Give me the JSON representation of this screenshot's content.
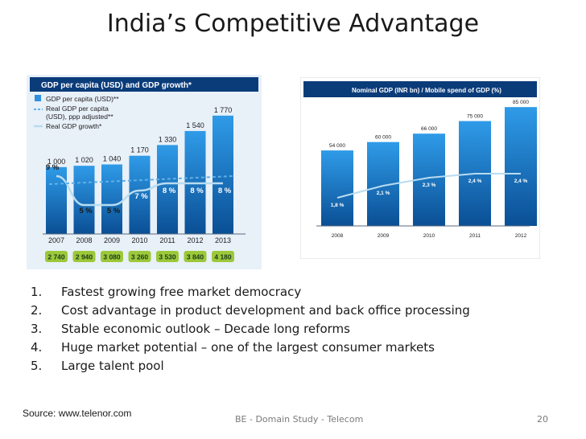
{
  "slide": {
    "title": "India’s Competitive Advantage",
    "bullets": [
      {
        "num": "1.",
        "text": "Fastest growing  free market democracy"
      },
      {
        "num": "2.",
        "text": "Cost advantage in product development and back office processing"
      },
      {
        "num": "3.",
        "text": "Stable economic outlook – Decade long reforms"
      },
      {
        "num": "4.",
        "text": "Huge market potential – one of the largest consumer markets"
      },
      {
        "num": "5.",
        "text": "Large talent pool"
      }
    ],
    "source": "Source: www.telenor.com",
    "footer_center": "BE - Domain Study - Telecom",
    "page_number": "20"
  },
  "colors": {
    "bar_top": "#2f9be8",
    "bar_bottom": "#0a4f95",
    "header_bg": "#0b3c7a",
    "panel_bg": "#e8f0f8",
    "green_box": "#9cc83a",
    "dashed_line": "#5fb0e8",
    "solid_line": "#b8dcf0"
  },
  "chart_data": [
    {
      "type": "bar",
      "title": "GDP per capita (USD) and GDP growth*",
      "categories": [
        "2007",
        "2008",
        "2009",
        "2010",
        "2011",
        "2012",
        "2013"
      ],
      "ylim": [
        0,
        1900
      ],
      "legend": {
        "placement": "top-left",
        "entries": [
          {
            "label": "GDP per capita (USD)**",
            "marker": "bar"
          },
          {
            "label": "Real GDP per capita (USD), ppp adjusted**",
            "marker": "dashed-line"
          },
          {
            "label": "Real GDP growth*",
            "marker": "line"
          }
        ]
      },
      "series": [
        {
          "name": "GDP per capita (USD)**",
          "kind": "bar",
          "values": [
            1000,
            1020,
            1040,
            1170,
            1330,
            1540,
            1770
          ],
          "labels": [
            "1 000",
            "1 020",
            "1 040",
            "1 170",
            "1 330",
            "1 540",
            "1 770"
          ]
        },
        {
          "name": "Real GDP per capita (USD), ppp adjusted**",
          "kind": "box",
          "values": [
            2740,
            2940,
            3080,
            3260,
            3530,
            3840,
            4180
          ],
          "labels": [
            "2 740",
            "2 940",
            "3 080",
            "3 260",
            "3 530",
            "3 840",
            "4 180"
          ]
        },
        {
          "name": "Real GDP growth*",
          "kind": "line",
          "values": [
            9,
            5,
            5,
            7,
            8,
            8,
            8
          ],
          "labels": [
            "9 %",
            "5 %",
            "5 %",
            "7 %",
            "8 %",
            "8 %",
            "8 %"
          ]
        }
      ]
    },
    {
      "type": "bar",
      "title": "Nominal GDP (INR bn) / Mobile spend of GDP (%)",
      "categories": [
        "2008",
        "2009",
        "2010",
        "2011",
        "2012"
      ],
      "ylim": [
        0,
        92000
      ],
      "series": [
        {
          "name": "Nominal GDP (INR bn)",
          "kind": "bar",
          "values": [
            54000,
            60000,
            66000,
            75000,
            85000
          ],
          "labels": [
            "54 000",
            "60 000",
            "66 000",
            "75 000",
            "85 000"
          ]
        },
        {
          "name": "Mobile spend of GDP (%)",
          "kind": "line",
          "values": [
            1.8,
            2.1,
            2.3,
            2.4,
            2.4
          ],
          "labels": [
            "1,8 %",
            "2,1 %",
            "2,3 %",
            "2,4 %",
            "2,4 %"
          ]
        }
      ]
    }
  ]
}
